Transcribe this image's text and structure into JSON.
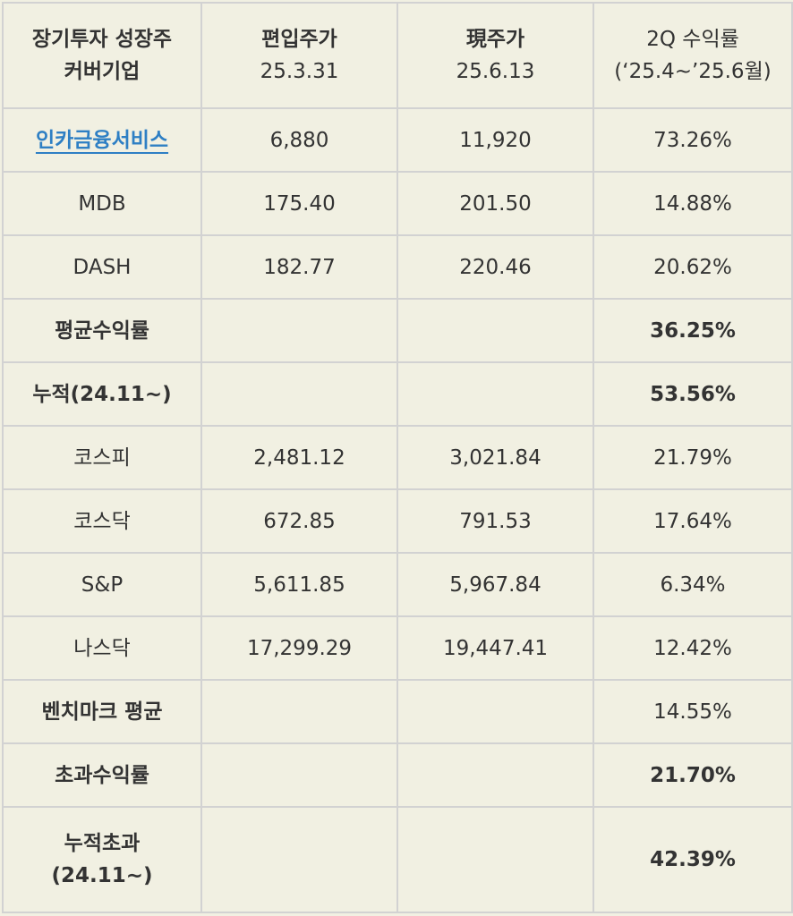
{
  "header": {
    "col1_line1": "장기투자 성장주",
    "col1_line2": "커버기업",
    "col2_line1": "편입주가",
    "col2_line2": "25.3.31",
    "col3_line1": "現주가",
    "col3_line2": "25.6.13",
    "col4_line1": "2Q 수익률",
    "col4_line2": "(‘25.4~’25.6월)"
  },
  "rows": [
    {
      "name": "인카금융서비스",
      "entry": "6,880",
      "current": "11,920",
      "return": "73.26%"
    },
    {
      "name": "MDB",
      "entry": "175.40",
      "current": "201.50",
      "return": "14.88%"
    },
    {
      "name": "DASH",
      "entry": "182.77",
      "current": "220.46",
      "return": "20.62%"
    },
    {
      "name": "평균수익률",
      "entry": "",
      "current": "",
      "return": "36.25%"
    },
    {
      "name": "누적(24.11~)",
      "entry": "",
      "current": "",
      "return": "53.56%"
    },
    {
      "name": "코스피",
      "entry": "2,481.12",
      "current": "3,021.84",
      "return": "21.79%"
    },
    {
      "name": "코스닥",
      "entry": "672.85",
      "current": "791.53",
      "return": "17.64%"
    },
    {
      "name": "S&P",
      "entry": "5,611.85",
      "current": "5,967.84",
      "return": "6.34%"
    },
    {
      "name": "나스닥",
      "entry": "17,299.29",
      "current": "19,447.41",
      "return": "12.42%"
    },
    {
      "name": "벤치마크 평균",
      "entry": "",
      "current": "",
      "return": "14.55%"
    },
    {
      "name": "초과수익률",
      "entry": "",
      "current": "",
      "return": "21.70%"
    }
  ],
  "last_row": {
    "name_line1": "누적초과",
    "name_line2": "(24.11~)",
    "entry": "",
    "current": "",
    "return": "42.39%"
  },
  "colors": {
    "background": "#f1f0e2",
    "border": "#d2d2d2",
    "text": "#333333",
    "link": "#2e7fc4"
  }
}
